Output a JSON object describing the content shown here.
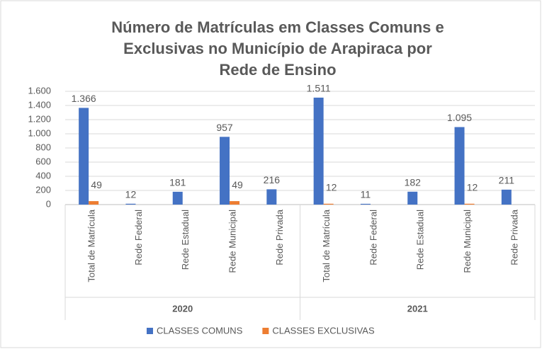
{
  "chart_data": {
    "type": "bar",
    "title": [
      "Número de Matrículas em Classes Comuns e",
      "Exclusivas no Município de Arapiraca por",
      "Rede de Ensino"
    ],
    "groups": [
      {
        "label": "2020",
        "categories": [
          "Total de Matrícula",
          "Rede Federal",
          "Rede Estadual",
          "Rede Municipal",
          "Rede Privada"
        ]
      },
      {
        "label": "2021",
        "categories": [
          "Total de Matrícula",
          "Rede Federal",
          "Rede Estadual",
          "Rede Municipal",
          "Rede Privada"
        ]
      }
    ],
    "series": [
      {
        "name": "CLASSES COMUNS",
        "color": "#4472c4",
        "values": [
          1366,
          12,
          181,
          957,
          216,
          1511,
          11,
          182,
          1095,
          211
        ],
        "value_labels": [
          "1.366",
          "12",
          "181",
          "957",
          "216",
          "1.511",
          "11",
          "182",
          "1.095",
          "211"
        ]
      },
      {
        "name": "CLASSES EXCLUSIVAS",
        "color": "#ed7d31",
        "values": [
          49,
          null,
          null,
          49,
          null,
          12,
          null,
          null,
          12,
          null
        ],
        "value_labels": [
          "49",
          null,
          null,
          "49",
          null,
          "12",
          null,
          null,
          "12",
          null
        ]
      }
    ],
    "ylim": [
      0,
      1600
    ],
    "yticks": [
      0,
      200,
      400,
      600,
      800,
      {
        "value": 1000,
        "label": "1.000"
      },
      {
        "value": 1200,
        "label": "1.200"
      },
      {
        "value": 1400,
        "label": "1.400"
      },
      {
        "value": 1600,
        "label": "1.600"
      }
    ],
    "grid": true,
    "legend": "bottom"
  }
}
